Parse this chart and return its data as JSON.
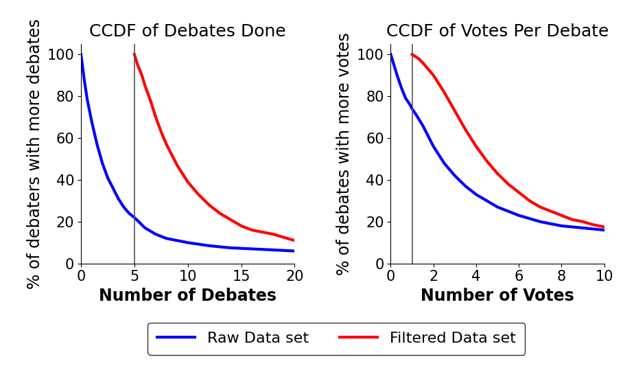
{
  "plot1": {
    "title": "CCDF of Debates Done",
    "xlabel": "Number of Debates",
    "ylabel": "% of debaters with more debates",
    "xlim": [
      0,
      20
    ],
    "ylim": [
      0,
      105
    ],
    "vline": 5,
    "raw_x": [
      0,
      0.3,
      0.6,
      1,
      1.5,
      2,
      2.5,
      3,
      3.5,
      4,
      4.5,
      5,
      6,
      7,
      8,
      9,
      10,
      12,
      14,
      16,
      18,
      20
    ],
    "raw_y": [
      100,
      88,
      78,
      68,
      57,
      48,
      41,
      36,
      31,
      27,
      24,
      22,
      17,
      14,
      12,
      11,
      10,
      8.5,
      7.5,
      7,
      6.5,
      6
    ],
    "filtered_x": [
      5,
      5.3,
      5.7,
      6,
      6.5,
      7,
      7.5,
      8,
      8.5,
      9,
      9.5,
      10,
      11,
      12,
      13,
      14,
      15,
      16,
      17,
      18,
      19,
      20
    ],
    "filtered_y": [
      100,
      95,
      90,
      85,
      78,
      70,
      63,
      57,
      52,
      47,
      43,
      39,
      33,
      28,
      24,
      21,
      18,
      16,
      15,
      14,
      12.5,
      11
    ],
    "xticks": [
      0,
      5,
      10,
      15,
      20
    ],
    "yticks": [
      0,
      20,
      40,
      60,
      80,
      100
    ]
  },
  "plot2": {
    "title": "CCDF of Votes Per Debate",
    "xlabel": "Number of Votes",
    "ylabel": "% of debates with more votes",
    "xlim": [
      0,
      10
    ],
    "ylim": [
      0,
      105
    ],
    "vline": 1,
    "raw_x": [
      0,
      0.15,
      0.3,
      0.5,
      0.7,
      0.9,
      1.0,
      1.2,
      1.5,
      2,
      2.5,
      3,
      3.5,
      4,
      4.5,
      5,
      5.5,
      6,
      6.5,
      7,
      7.5,
      8,
      8.5,
      9,
      9.5,
      10
    ],
    "raw_y": [
      100,
      95,
      90,
      84,
      79,
      76,
      74,
      71,
      66,
      56,
      48,
      42,
      37,
      33,
      30,
      27,
      25,
      23,
      21.5,
      20,
      19,
      18,
      17.5,
      17,
      16.5,
      16
    ],
    "filtered_x": [
      1,
      1.15,
      1.3,
      1.5,
      2,
      2.5,
      3,
      3.5,
      4,
      4.5,
      5,
      5.5,
      6,
      6.5,
      7,
      7.5,
      8,
      8.5,
      9,
      9.5,
      10
    ],
    "filtered_y": [
      100,
      99,
      98,
      96,
      90,
      82,
      73,
      64,
      56,
      49,
      43,
      38,
      34,
      30,
      27,
      25,
      23,
      21,
      20,
      18.5,
      17.5
    ],
    "xticks": [
      0,
      2,
      4,
      6,
      8,
      10
    ],
    "yticks": [
      0,
      20,
      40,
      60,
      80,
      100
    ]
  },
  "raw_color": "#0000ff",
  "filtered_color": "#ff0000",
  "line_width": 3.0,
  "raw_label": "Raw Data set",
  "filtered_label": "Filtered Data set",
  "title_fontsize": 18,
  "label_fontsize": 17,
  "ylabel_fontsize": 17,
  "tick_fontsize": 15,
  "legend_fontsize": 16,
  "vline_color": "#555555",
  "vline_lw": 1.2
}
